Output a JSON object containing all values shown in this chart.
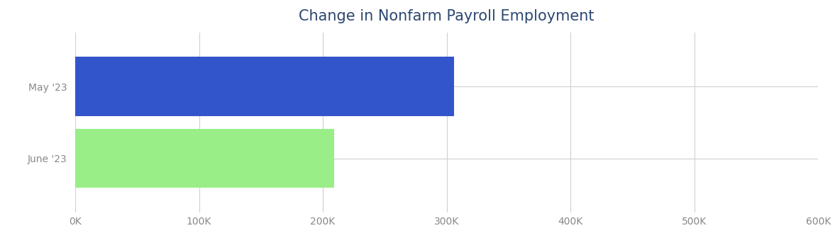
{
  "title": "Change in Nonfarm Payroll Employment",
  "title_color": "#2c4770",
  "categories": [
    "June '23",
    "May '23"
  ],
  "values": [
    209000,
    306000
  ],
  "bar_colors": [
    "#99ee88",
    "#3355CC"
  ],
  "xlim": [
    0,
    600000
  ],
  "xticks": [
    0,
    100000,
    200000,
    300000,
    400000,
    500000,
    600000
  ],
  "xtick_labels": [
    "0K",
    "100K",
    "200K",
    "300K",
    "400K",
    "500K",
    "600K"
  ],
  "background_color": "#ffffff",
  "grid_color": "#d0d0d0",
  "bar_height": 0.82,
  "title_fontsize": 15,
  "tick_fontsize": 10,
  "ylabel_fontsize": 10,
  "figsize": [
    11.77,
    3.53
  ],
  "dpi": 100
}
